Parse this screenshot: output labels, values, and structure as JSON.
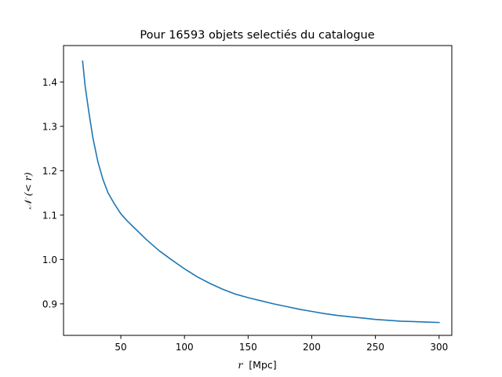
{
  "chart_data": {
    "type": "line",
    "title": "Pour 16593 objets selectiés du catalogue",
    "xlabel": {
      "var": "r",
      "unit": "[Mpc]"
    },
    "ylabel": {
      "symbol": "𝒩",
      "var": "(< r)"
    },
    "xlim": [
      5,
      310
    ],
    "ylim": [
      0.829,
      1.482
    ],
    "xticks": [
      50,
      100,
      150,
      200,
      250,
      300
    ],
    "yticks": [
      0.9,
      1.0,
      1.1,
      1.2,
      1.3,
      1.4
    ],
    "xtick_labels": [
      "50",
      "100",
      "150",
      "200",
      "250",
      "300"
    ],
    "ytick_labels": [
      "0.9",
      "1.0",
      "1.1",
      "1.2",
      "1.3",
      "1.4"
    ],
    "grid": false,
    "legend": "none",
    "series": [
      {
        "color": "#1f77b4",
        "x": [
          20,
          22,
          25,
          28,
          32,
          36,
          40,
          45,
          50,
          55,
          60,
          70,
          80,
          90,
          100,
          110,
          120,
          130,
          140,
          150,
          160,
          170,
          180,
          190,
          200,
          210,
          220,
          230,
          240,
          250,
          260,
          270,
          280,
          290,
          300
        ],
        "y": [
          1.447,
          1.39,
          1.33,
          1.275,
          1.22,
          1.18,
          1.15,
          1.125,
          1.103,
          1.087,
          1.073,
          1.045,
          1.02,
          0.999,
          0.979,
          0.961,
          0.946,
          0.933,
          0.922,
          0.914,
          0.907,
          0.9,
          0.894,
          0.888,
          0.883,
          0.878,
          0.874,
          0.871,
          0.868,
          0.865,
          0.863,
          0.861,
          0.86,
          0.859,
          0.858
        ]
      }
    ]
  }
}
